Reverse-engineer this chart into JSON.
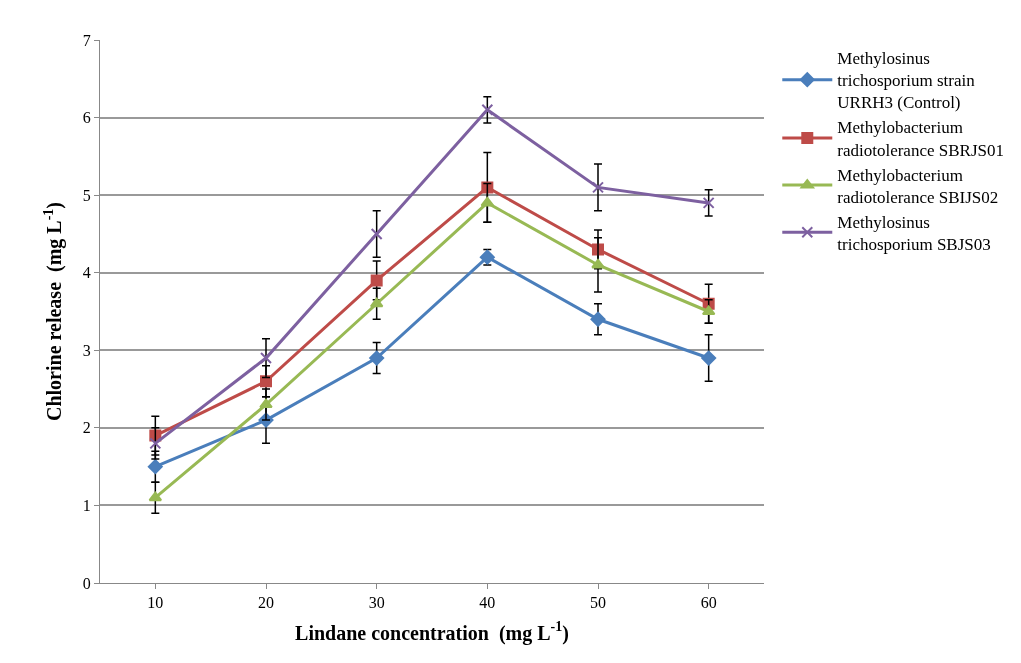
{
  "chart_data": {
    "type": "line",
    "xlabel": "Lindane concentration  (mg L$^{-1}$)",
    "ylabel": "Chlorine release  (mg L$^{-1}$)",
    "categories": [
      "10",
      "20",
      "30",
      "40",
      "50",
      "60"
    ],
    "ylim": [
      0,
      7
    ],
    "yticks": [
      0,
      1,
      2,
      3,
      4,
      5,
      6,
      7
    ],
    "grid": "y",
    "legend": "right",
    "line_style": "solid",
    "series": [
      {
        "name": "Methylosinus trichosporium strain URRH3 (Control)",
        "color": "#4a7ebb",
        "marker": "diamond",
        "values": [
          1.5,
          2.1,
          2.9,
          4.2,
          3.4,
          2.9
        ],
        "errors": [
          0.2,
          0.3,
          0.2,
          0.1,
          0.2,
          0.3
        ]
      },
      {
        "name": "Methylobacterium radiotolerance SBRJS01",
        "color": "#be4b48",
        "marker": "square",
        "values": [
          1.9,
          2.6,
          3.9,
          5.1,
          4.3,
          3.6
        ],
        "errors": [
          0.25,
          0.2,
          0.25,
          0.45,
          0.25,
          0.25
        ]
      },
      {
        "name": "Methylobacterium radiotolerance SBIJS02",
        "color": "#98b954",
        "marker": "triangle",
        "values": [
          1.1,
          2.3,
          3.6,
          4.9,
          4.1,
          3.5
        ],
        "errors": [
          0.2,
          0.2,
          0.2,
          0.25,
          0.35,
          0.15
        ]
      },
      {
        "name": "Methylosinus trichosporium SBJS03",
        "color": "#7d60a0",
        "marker": "cross",
        "values": [
          1.8,
          2.9,
          4.5,
          6.1,
          5.1,
          4.9
        ],
        "errors": [
          0.2,
          0.25,
          0.3,
          0.17,
          0.3,
          0.17
        ]
      }
    ]
  }
}
